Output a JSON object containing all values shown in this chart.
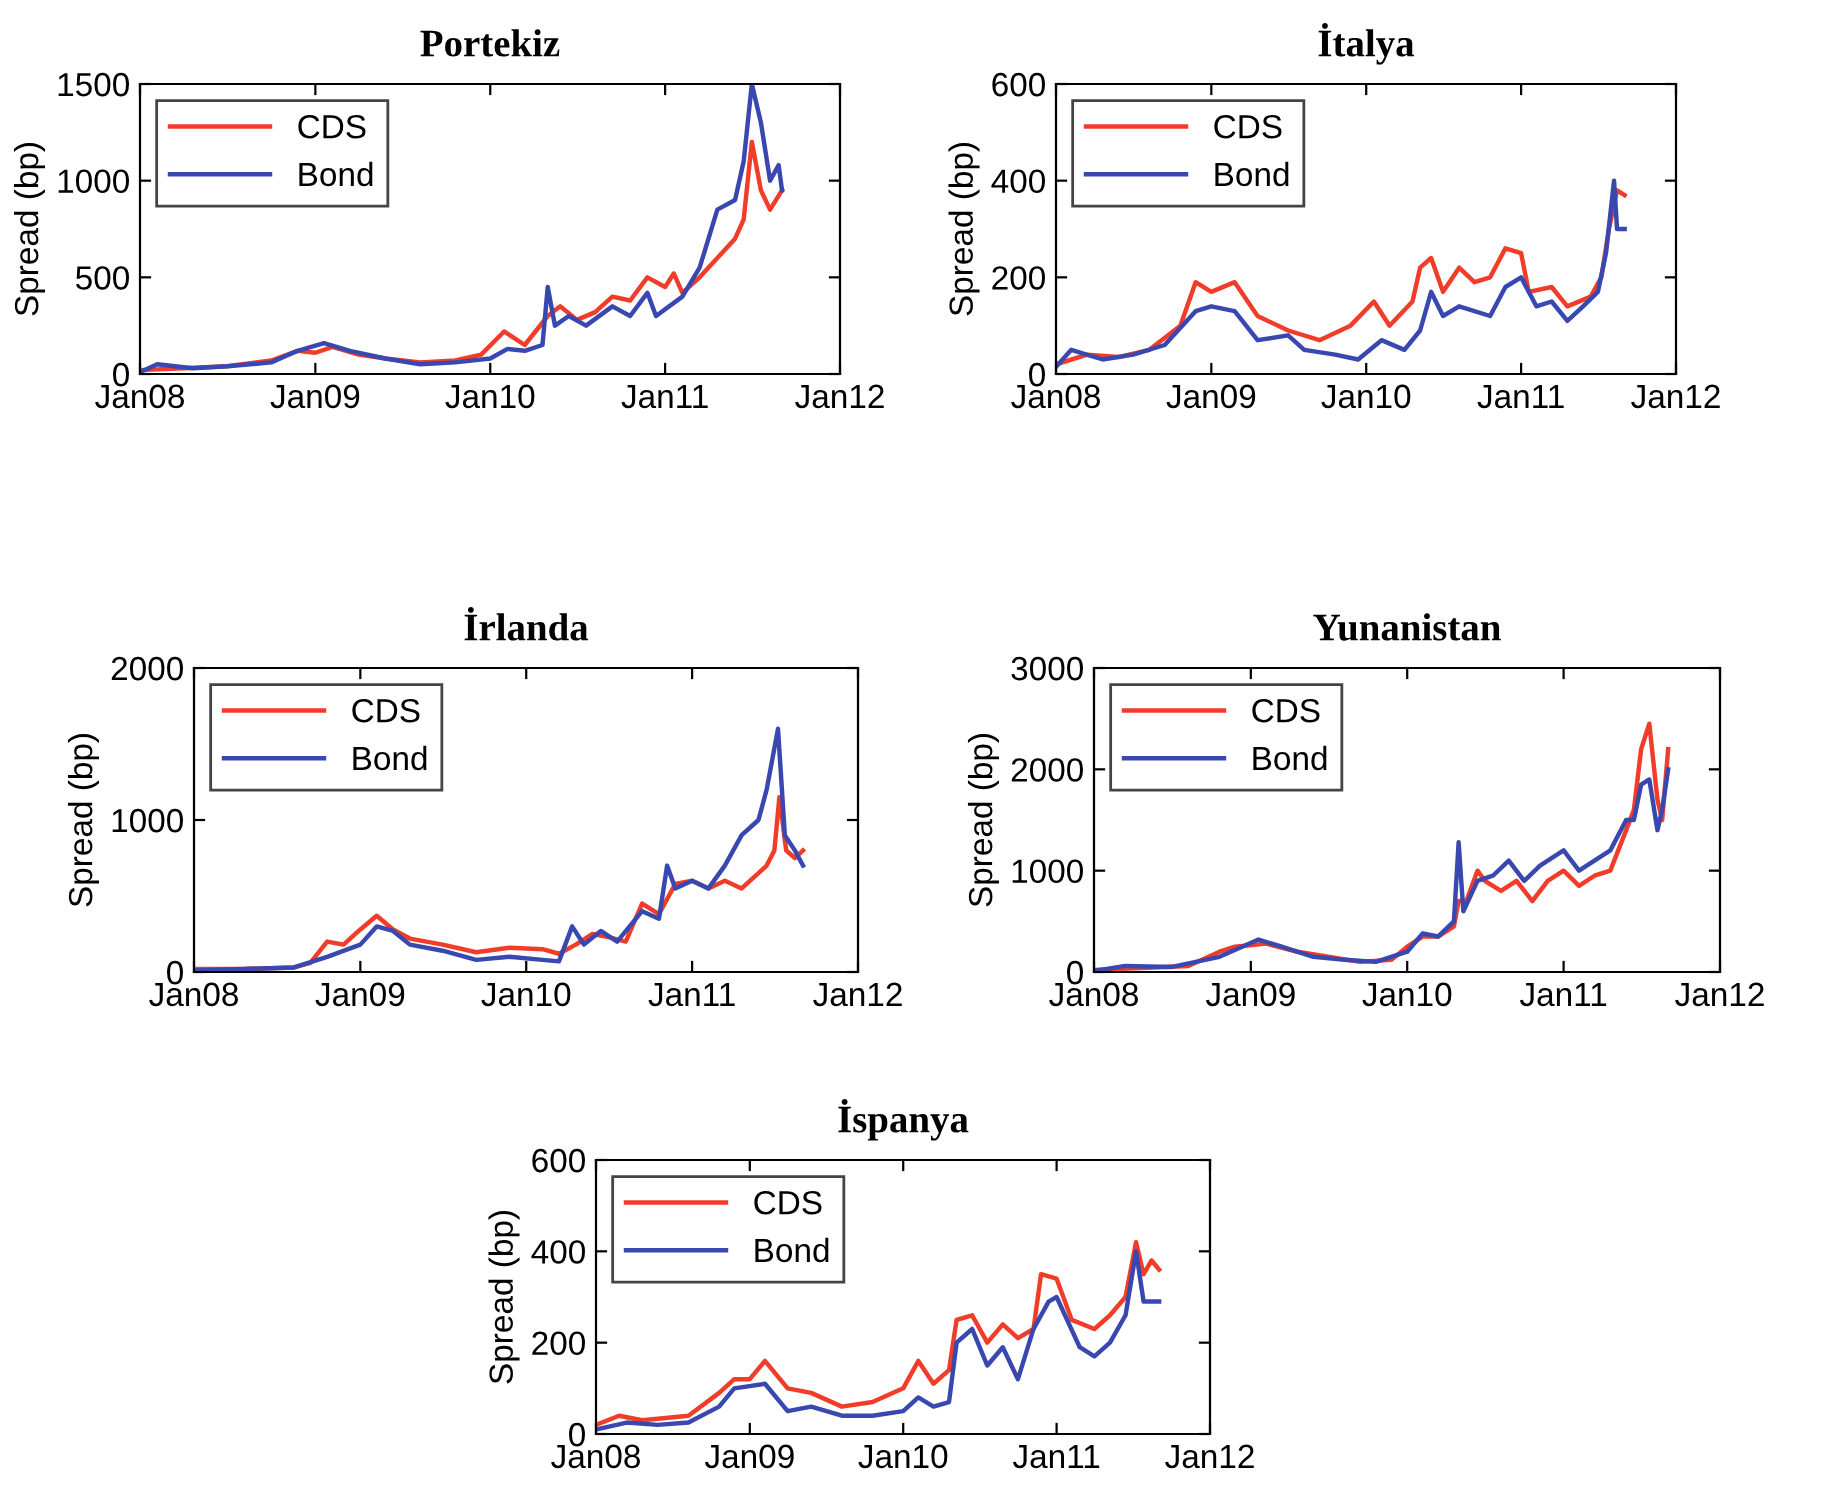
{
  "chart_data": [
    {
      "type": "line",
      "title": "Portekiz",
      "ylabel": "Spread (bp)",
      "xlim": [
        "2008-01",
        "2012-01"
      ],
      "ylim": [
        0,
        1500
      ],
      "yticks": [
        0,
        500,
        1000,
        1500
      ],
      "legend": "top left",
      "xticks": [
        {
          "value": "2008-01",
          "label": "Jan08"
        },
        {
          "value": "2009-01",
          "label": "Jan09"
        },
        {
          "value": "2010-01",
          "label": "Jan10"
        },
        {
          "value": "2011-01",
          "label": "Jan11"
        },
        {
          "value": "2012-01",
          "label": "Jan12"
        }
      ],
      "series": [
        {
          "name": "CDS",
          "color": "#f03c28",
          "x": [
            "2008-01-01",
            "2008-04-01",
            "2008-07-01",
            "2008-10-01",
            "2008-11-25",
            "2009-01-01",
            "2009-02-06",
            "2009-04-01",
            "2009-05-27",
            "2009-08-08",
            "2009-10-20",
            "2009-12-13",
            "2010-01-30",
            "2010-03-14",
            "2010-05-01",
            "2010-05-27",
            "2010-07-01",
            "2010-08-08",
            "2010-09-13",
            "2010-10-20",
            "2010-11-25",
            "2011-01-01",
            "2011-01-19",
            "2011-02-06",
            "2011-03-14",
            "2011-04-20",
            "2011-05-27",
            "2011-06-14",
            "2011-07-01",
            "2011-07-20",
            "2011-08-08",
            "2011-09-02"
          ],
          "values": [
            20,
            30,
            40,
            70,
            120,
            110,
            140,
            100,
            80,
            60,
            70,
            100,
            220,
            150,
            300,
            350,
            280,
            320,
            400,
            380,
            500,
            450,
            520,
            420,
            500,
            600,
            700,
            800,
            1200,
            950,
            850,
            950
          ]
        },
        {
          "name": "Bond",
          "color": "#3848b0",
          "x": [
            "2008-01-01",
            "2008-02-06",
            "2008-04-20",
            "2008-07-01",
            "2008-10-01",
            "2008-11-25",
            "2009-01-19",
            "2009-03-14",
            "2009-05-27",
            "2009-08-08",
            "2009-10-20",
            "2010-01-01",
            "2010-02-06",
            "2010-03-14",
            "2010-04-20",
            "2010-05-01",
            "2010-05-16",
            "2010-06-14",
            "2010-07-20",
            "2010-09-13",
            "2010-10-20",
            "2010-11-25",
            "2010-12-13",
            "2011-02-06",
            "2011-03-14",
            "2011-04-20",
            "2011-05-27",
            "2011-06-14",
            "2011-07-01",
            "2011-07-20",
            "2011-08-08",
            "2011-08-26",
            "2011-09-02"
          ],
          "values": [
            10,
            50,
            30,
            40,
            60,
            120,
            160,
            120,
            80,
            50,
            60,
            80,
            130,
            120,
            150,
            450,
            250,
            300,
            250,
            350,
            300,
            420,
            300,
            400,
            550,
            850,
            900,
            1100,
            1500,
            1300,
            1000,
            1080,
            950
          ]
        }
      ]
    },
    {
      "type": "line",
      "title": "İtalya",
      "ylabel": "Spread (bp)",
      "xlim": [
        "2008-01",
        "2012-01"
      ],
      "ylim": [
        0,
        600
      ],
      "yticks": [
        0,
        200,
        400,
        600
      ],
      "legend": "top left",
      "xticks": [
        {
          "value": "2008-01",
          "label": "Jan08"
        },
        {
          "value": "2009-01",
          "label": "Jan09"
        },
        {
          "value": "2010-01",
          "label": "Jan10"
        },
        {
          "value": "2011-01",
          "label": "Jan11"
        },
        {
          "value": "2012-01",
          "label": "Jan12"
        }
      ],
      "series": [
        {
          "name": "CDS",
          "color": "#f03c28",
          "x": [
            "2008-01-01",
            "2008-03-14",
            "2008-05-27",
            "2008-08-08",
            "2008-10-20",
            "2008-11-25",
            "2009-01-01",
            "2009-02-25",
            "2009-04-20",
            "2009-07-01",
            "2009-09-13",
            "2009-11-25",
            "2010-01-19",
            "2010-02-25",
            "2010-04-20",
            "2010-05-08",
            "2010-06-03",
            "2010-07-01",
            "2010-08-08",
            "2010-09-13",
            "2010-10-20",
            "2010-11-25",
            "2011-01-01",
            "2011-01-19",
            "2011-03-14",
            "2011-04-20",
            "2011-06-14",
            "2011-07-09",
            "2011-07-27",
            "2011-08-15",
            "2011-09-02"
          ],
          "values": [
            20,
            40,
            35,
            50,
            100,
            190,
            170,
            190,
            120,
            90,
            70,
            100,
            150,
            100,
            150,
            220,
            240,
            170,
            220,
            190,
            200,
            260,
            250,
            170,
            180,
            140,
            160,
            200,
            300,
            380,
            370
          ]
        },
        {
          "name": "Bond",
          "color": "#3848b0",
          "x": [
            "2008-01-01",
            "2008-02-06",
            "2008-04-20",
            "2008-07-01",
            "2008-09-13",
            "2008-11-25",
            "2009-01-01",
            "2009-02-25",
            "2009-04-20",
            "2009-07-01",
            "2009-08-08",
            "2009-10-20",
            "2009-12-13",
            "2010-02-06",
            "2010-04-01",
            "2010-05-08",
            "2010-06-03",
            "2010-07-01",
            "2010-08-08",
            "2010-10-20",
            "2010-11-25",
            "2011-01-01",
            "2011-02-06",
            "2011-03-14",
            "2011-04-20",
            "2011-05-27",
            "2011-07-01",
            "2011-07-20",
            "2011-08-08",
            "2011-08-15",
            "2011-09-02"
          ],
          "values": [
            15,
            50,
            30,
            40,
            60,
            130,
            140,
            130,
            70,
            80,
            50,
            40,
            30,
            70,
            50,
            90,
            170,
            120,
            140,
            120,
            180,
            200,
            140,
            150,
            110,
            140,
            170,
            250,
            400,
            300,
            300
          ]
        }
      ]
    },
    {
      "type": "line",
      "title": "İrlanda",
      "ylabel": "Spread (bp)",
      "xlim": [
        "2008-01",
        "2012-01"
      ],
      "ylim": [
        0,
        2000
      ],
      "yticks": [
        0,
        1000,
        2000
      ],
      "legend": "top left",
      "xticks": [
        {
          "value": "2008-01",
          "label": "Jan08"
        },
        {
          "value": "2009-01",
          "label": "Jan09"
        },
        {
          "value": "2010-01",
          "label": "Jan10"
        },
        {
          "value": "2011-01",
          "label": "Jan11"
        },
        {
          "value": "2012-01",
          "label": "Jan12"
        }
      ],
      "series": [
        {
          "name": "CDS",
          "color": "#f03c28",
          "x": [
            "2008-01-01",
            "2008-04-20",
            "2008-08-08",
            "2008-09-13",
            "2008-10-20",
            "2008-11-25",
            "2009-01-01",
            "2009-02-06",
            "2009-03-14",
            "2009-04-20",
            "2009-07-01",
            "2009-09-13",
            "2009-11-25",
            "2010-02-06",
            "2010-03-14",
            "2010-04-20",
            "2010-05-27",
            "2010-07-01",
            "2010-08-08",
            "2010-09-13",
            "2010-10-20",
            "2010-11-25",
            "2011-01-01",
            "2011-02-06",
            "2011-03-14",
            "2011-04-20",
            "2011-05-27",
            "2011-06-14",
            "2011-07-01",
            "2011-07-12",
            "2011-07-27",
            "2011-08-15",
            "2011-09-02"
          ],
          "values": [
            20,
            20,
            30,
            60,
            200,
            180,
            280,
            370,
            280,
            220,
            180,
            130,
            160,
            150,
            120,
            180,
            250,
            230,
            200,
            450,
            380,
            580,
            600,
            550,
            600,
            550,
            650,
            700,
            800,
            1150,
            800,
            750,
            800
          ]
        },
        {
          "name": "Bond",
          "color": "#3848b0",
          "x": [
            "2008-01-01",
            "2008-04-20",
            "2008-08-08",
            "2008-10-20",
            "2009-01-01",
            "2009-02-06",
            "2009-03-14",
            "2009-04-20",
            "2009-07-01",
            "2009-09-13",
            "2009-11-25",
            "2010-02-06",
            "2010-03-14",
            "2010-04-12",
            "2010-05-08",
            "2010-06-14",
            "2010-07-20",
            "2010-09-13",
            "2010-10-20",
            "2010-11-07",
            "2010-11-25",
            "2011-01-01",
            "2011-02-06",
            "2011-03-14",
            "2011-04-20",
            "2011-05-27",
            "2011-06-14",
            "2011-07-09",
            "2011-07-24",
            "2011-08-15",
            "2011-09-02"
          ],
          "values": [
            10,
            20,
            30,
            100,
            180,
            300,
            270,
            180,
            140,
            80,
            100,
            80,
            70,
            300,
            180,
            270,
            200,
            400,
            350,
            700,
            550,
            600,
            550,
            700,
            900,
            1000,
            1200,
            1600,
            900,
            800,
            700
          ]
        }
      ]
    },
    {
      "type": "line",
      "title": "Yunanistan",
      "ylabel": "Spread (bp)",
      "xlim": [
        "2008-01",
        "2012-01"
      ],
      "ylim": [
        0,
        3000
      ],
      "yticks": [
        0,
        1000,
        2000,
        3000
      ],
      "legend": "top left",
      "xticks": [
        {
          "value": "2008-01",
          "label": "Jan08"
        },
        {
          "value": "2009-01",
          "label": "Jan09"
        },
        {
          "value": "2010-01",
          "label": "Jan10"
        },
        {
          "value": "2011-01",
          "label": "Jan11"
        },
        {
          "value": "2012-01",
          "label": "Jan12"
        }
      ],
      "series": [
        {
          "name": "CDS",
          "color": "#f03c28",
          "x": [
            "2008-01-01",
            "2008-04-20",
            "2008-08-08",
            "2008-10-20",
            "2008-11-25",
            "2009-02-06",
            "2009-04-20",
            "2009-07-01",
            "2009-09-13",
            "2009-11-25",
            "2010-01-01",
            "2010-02-06",
            "2010-03-14",
            "2010-04-20",
            "2010-05-01",
            "2010-05-19",
            "2010-06-14",
            "2010-07-01",
            "2010-08-08",
            "2010-09-13",
            "2010-10-20",
            "2010-11-25",
            "2011-01-01",
            "2011-02-06",
            "2011-03-14",
            "2011-04-20",
            "2011-05-27",
            "2011-06-14",
            "2011-07-01",
            "2011-07-20",
            "2011-08-08",
            "2011-08-19",
            "2011-09-02"
          ],
          "values": [
            20,
            40,
            60,
            200,
            250,
            280,
            200,
            150,
            100,
            120,
            250,
            350,
            350,
            450,
            700,
            700,
            1000,
            900,
            800,
            900,
            700,
            900,
            1000,
            850,
            950,
            1000,
            1400,
            1600,
            2200,
            2450,
            1700,
            1500,
            2200
          ]
        },
        {
          "name": "Bond",
          "color": "#3848b0",
          "x": [
            "2008-01-01",
            "2008-03-14",
            "2008-07-01",
            "2008-10-20",
            "2009-01-19",
            "2009-03-14",
            "2009-05-27",
            "2009-08-08",
            "2009-10-20",
            "2010-01-01",
            "2010-02-06",
            "2010-03-14",
            "2010-04-20",
            "2010-05-01",
            "2010-05-12",
            "2010-06-14",
            "2010-07-20",
            "2010-08-26",
            "2010-10-01",
            "2010-11-07",
            "2011-01-01",
            "2011-02-06",
            "2011-03-14",
            "2011-04-20",
            "2011-05-27",
            "2011-06-14",
            "2011-07-01",
            "2011-07-20",
            "2011-08-08",
            "2011-08-19",
            "2011-09-02"
          ],
          "values": [
            10,
            60,
            50,
            150,
            320,
            250,
            150,
            120,
            100,
            200,
            380,
            350,
            500,
            1280,
            600,
            900,
            950,
            1100,
            900,
            1050,
            1200,
            1000,
            1100,
            1200,
            1500,
            1500,
            1850,
            1900,
            1400,
            1600,
            2000
          ]
        }
      ]
    },
    {
      "type": "line",
      "title": "İspanya",
      "ylabel": "Spread (bp)",
      "xlim": [
        "2008-01",
        "2012-01"
      ],
      "ylim": [
        0,
        600
      ],
      "yticks": [
        0,
        200,
        400,
        600
      ],
      "legend": "top left",
      "xticks": [
        {
          "value": "2008-01",
          "label": "Jan08"
        },
        {
          "value": "2009-01",
          "label": "Jan09"
        },
        {
          "value": "2010-01",
          "label": "Jan10"
        },
        {
          "value": "2011-01",
          "label": "Jan11"
        },
        {
          "value": "2012-01",
          "label": "Jan12"
        }
      ],
      "series": [
        {
          "name": "CDS",
          "color": "#f03c28",
          "x": [
            "2008-01-01",
            "2008-02-25",
            "2008-04-20",
            "2008-08-08",
            "2008-10-20",
            "2008-11-25",
            "2009-01-01",
            "2009-02-06",
            "2009-04-01",
            "2009-05-27",
            "2009-08-08",
            "2009-10-20",
            "2010-01-01",
            "2010-02-06",
            "2010-03-14",
            "2010-04-20",
            "2010-05-08",
            "2010-06-14",
            "2010-07-20",
            "2010-08-26",
            "2010-10-01",
            "2010-11-07",
            "2010-11-25",
            "2011-01-01",
            "2011-02-06",
            "2011-04-01",
            "2011-05-08",
            "2011-06-14",
            "2011-07-09",
            "2011-07-27",
            "2011-08-15",
            "2011-09-02"
          ],
          "values": [
            20,
            40,
            30,
            40,
            90,
            120,
            120,
            160,
            100,
            90,
            60,
            70,
            100,
            160,
            110,
            140,
            250,
            260,
            200,
            240,
            210,
            230,
            350,
            340,
            250,
            230,
            260,
            300,
            420,
            350,
            380,
            360
          ]
        },
        {
          "name": "Bond",
          "color": "#3848b0",
          "x": [
            "2008-01-01",
            "2008-03-14",
            "2008-05-27",
            "2008-08-08",
            "2008-10-20",
            "2008-11-25",
            "2009-02-06",
            "2009-04-01",
            "2009-05-27",
            "2009-08-08",
            "2009-10-20",
            "2010-01-01",
            "2010-02-06",
            "2010-03-14",
            "2010-04-20",
            "2010-05-08",
            "2010-06-14",
            "2010-07-20",
            "2010-08-26",
            "2010-10-01",
            "2010-11-07",
            "2010-12-13",
            "2011-01-01",
            "2011-02-25",
            "2011-04-01",
            "2011-05-08",
            "2011-06-14",
            "2011-07-09",
            "2011-07-27",
            "2011-09-02"
          ],
          "values": [
            10,
            25,
            20,
            25,
            60,
            100,
            110,
            50,
            60,
            40,
            40,
            50,
            80,
            60,
            70,
            200,
            230,
            150,
            190,
            120,
            230,
            290,
            300,
            190,
            170,
            200,
            260,
            400,
            290,
            290
          ]
        }
      ]
    }
  ]
}
